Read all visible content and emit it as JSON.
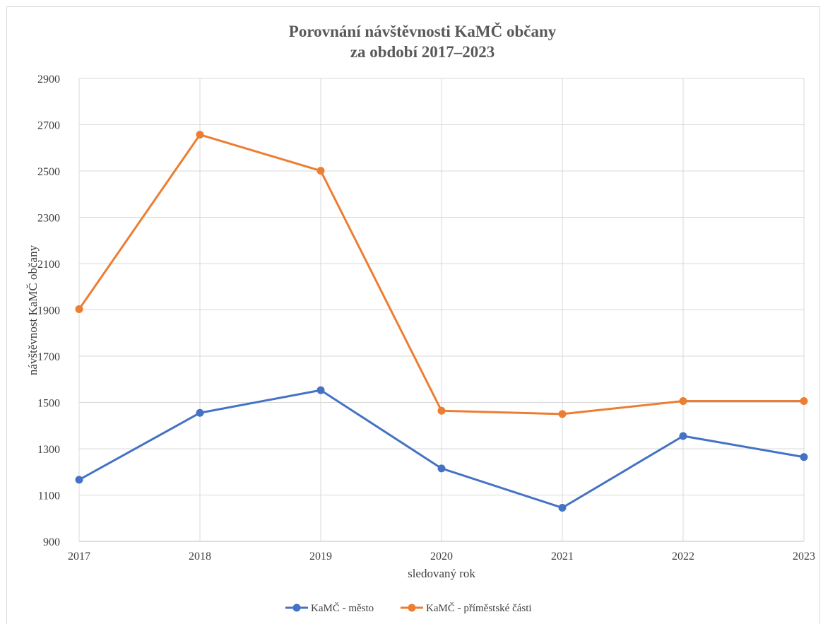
{
  "chart_data": {
    "type": "line",
    "title": "Porovnání návštěvnosti KaMČ občany",
    "subtitle": "za období 2017–2023",
    "xlabel": "sledovaný rok",
    "ylabel": "návštěvnost KaMČ občany",
    "categories": [
      "2017",
      "2018",
      "2019",
      "2020",
      "2021",
      "2022",
      "2023"
    ],
    "yticks": [
      "900",
      "1100",
      "1300",
      "1500",
      "1700",
      "1900",
      "2100",
      "2300",
      "2500",
      "2700",
      "2900"
    ],
    "ylim": [
      900,
      2900
    ],
    "grid": true,
    "legend_position": "bottom",
    "series": [
      {
        "name": "KaMČ - město",
        "color": "#4472c4",
        "values": [
          1166,
          1455,
          1553,
          1215,
          1045,
          1355,
          1264
        ]
      },
      {
        "name": "KaMČ - příměstské části",
        "color": "#ed7d31",
        "values": [
          1903,
          2657,
          2501,
          1464,
          1450,
          1506,
          1506
        ]
      }
    ]
  }
}
